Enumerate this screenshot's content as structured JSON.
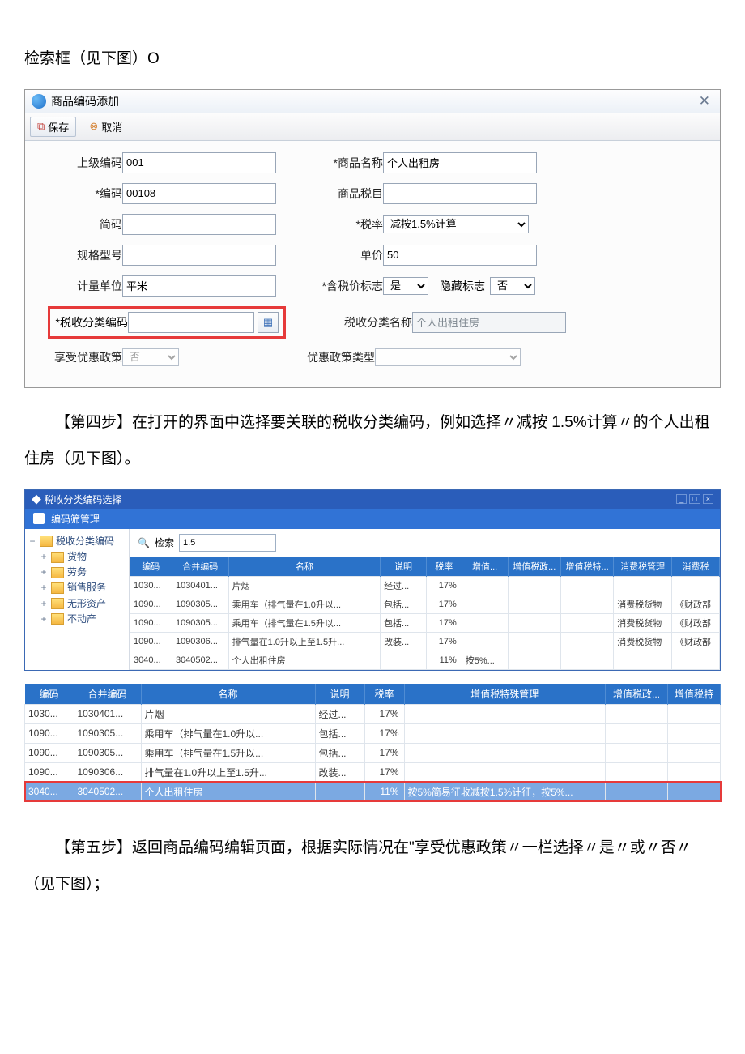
{
  "doc": {
    "intro": "检索框（见下图）O",
    "step4": "【第四步】在打开的界面中选择要关联的税收分类编码，例如选择〃减按 1.5%计算〃的个人出租住房（见下图）。",
    "step5": "【第五步】返回商品编码编辑页面，根据实际情况在\"享受优惠政策〃一栏选择〃是〃或〃否〃（见下图）；"
  },
  "dialog1": {
    "title": "商品编码添加",
    "close_glyph": "✕",
    "toolbar": {
      "save": "保存",
      "cancel": "取消"
    },
    "labels": {
      "parent_code": "上级编码",
      "code": "*编码",
      "short_code": "简码",
      "spec": "规格型号",
      "unit": "计量单位",
      "tax_class_code": "*税收分类编码",
      "policy": "享受优惠政策",
      "product_name": "*商品名称",
      "tax_item": "商品税目",
      "tax_rate": "*税率",
      "unit_price": "单价",
      "tax_flag": "*含税价标志",
      "hidden_flag": "隐藏标志",
      "tax_class_name": "税收分类名称",
      "policy_type": "优惠政策类型"
    },
    "values": {
      "parent_code": "001",
      "code": "00108",
      "short_code": "",
      "spec": "",
      "unit": "平米",
      "tax_class_code": "",
      "policy": "否",
      "product_name": "个人出租房",
      "tax_item": "",
      "tax_rate": "减按1.5%计算",
      "unit_price": "50",
      "tax_flag": "是",
      "hidden_flag": "否",
      "tax_class_name": "个人出租住房",
      "policy_type": ""
    }
  },
  "selector": {
    "title": "税收分类编码选择",
    "sub": "编码筛管理",
    "search_label": "检索",
    "search_value": "1.5",
    "tree": {
      "root": "税收分类编码",
      "children": [
        "货物",
        "劳务",
        "销售服务",
        "无形资产",
        "不动产"
      ]
    },
    "columns1": [
      "编码",
      "合并编码",
      "名称",
      "说明",
      "税率",
      "增值...",
      "增值税政...",
      "增值税特...",
      "消费税管理",
      "消费税"
    ],
    "rows1": [
      {
        "code": "1030...",
        "merge": "1030401...",
        "name": "片烟",
        "desc": "经过...",
        "rate": "17%",
        "vat": "",
        "vatp": "",
        "vats": "",
        "ctax": "",
        "ctaxdept": ""
      },
      {
        "code": "1090...",
        "merge": "1090305...",
        "name": "乘用车（排气量在1.0升以...",
        "desc": "包括...",
        "rate": "17%",
        "vat": "",
        "vatp": "",
        "vats": "",
        "ctax": "消费税货物",
        "ctaxdept": "《财政部"
      },
      {
        "code": "1090...",
        "merge": "1090305...",
        "name": "乘用车（排气量在1.5升以...",
        "desc": "包括...",
        "rate": "17%",
        "vat": "",
        "vatp": "",
        "vats": "",
        "ctax": "消费税货物",
        "ctaxdept": "《财政部"
      },
      {
        "code": "1090...",
        "merge": "1090306...",
        "name": "排气量在1.0升以上至1.5升...",
        "desc": "改装...",
        "rate": "17%",
        "vat": "",
        "vatp": "",
        "vats": "",
        "ctax": "消费税货物",
        "ctaxdept": "《财政部"
      },
      {
        "code": "3040...",
        "merge": "3040502...",
        "name": "个人出租住房",
        "desc": "",
        "rate": "11%",
        "vat": "按5%...",
        "vatp": "",
        "vats": "",
        "ctax": "",
        "ctaxdept": ""
      }
    ],
    "columns2": [
      "编码",
      "合并编码",
      "名称",
      "说明",
      "税率",
      "增值税特殊管理",
      "增值税政...",
      "增值税特"
    ],
    "rows2": [
      {
        "code": "1030...",
        "merge": "1030401...",
        "name": "片烟",
        "desc": "经过...",
        "rate": "17%",
        "sp": "",
        "p": "",
        "t": ""
      },
      {
        "code": "1090...",
        "merge": "1090305...",
        "name": "乘用车（排气量在1.0升以...",
        "desc": "包括...",
        "rate": "17%",
        "sp": "",
        "p": "",
        "t": ""
      },
      {
        "code": "1090...",
        "merge": "1090305...",
        "name": "乘用车（排气量在1.5升以...",
        "desc": "包括...",
        "rate": "17%",
        "sp": "",
        "p": "",
        "t": ""
      },
      {
        "code": "1090...",
        "merge": "1090306...",
        "name": "排气量在1.0升以上至1.5升...",
        "desc": "改装...",
        "rate": "17%",
        "sp": "",
        "p": "",
        "t": ""
      },
      {
        "code": "3040...",
        "merge": "3040502...",
        "name": "个人出租住房",
        "desc": "",
        "rate": "11%",
        "sp": "按5%简易征收减按1.5%计征，按5%...",
        "p": "",
        "t": "",
        "selected": true
      }
    ]
  },
  "style": {
    "highlight_border": "#e63a3a",
    "header_blue": "#2a72c8",
    "titlebar_blue": "#2a5dba"
  }
}
